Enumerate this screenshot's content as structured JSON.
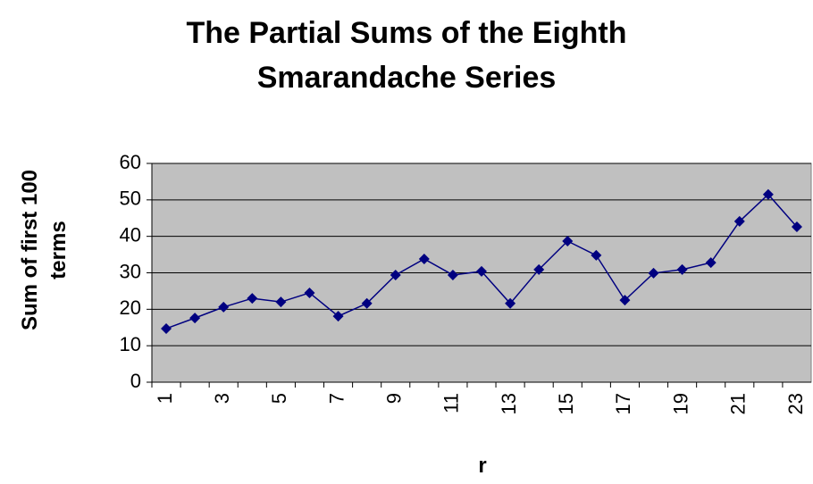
{
  "chart_data": {
    "type": "line",
    "title": "The Partial Sums of the Eighth Smarandache Series",
    "xlabel": "r",
    "ylabel": "Sum of first 100 terms",
    "categories": [
      "1",
      null,
      "3",
      null,
      "5",
      null,
      "7",
      null,
      "9",
      null,
      "11",
      null,
      "13",
      null,
      "15",
      null,
      "17",
      null,
      "19",
      null,
      "21",
      null,
      "23"
    ],
    "series": [
      {
        "name": "Sum of first 100 terms",
        "color": "#000080",
        "values": [
          14.7,
          17.6,
          20.6,
          23,
          22,
          24.5,
          18.1,
          21.6,
          29.4,
          33.8,
          29.4,
          30.4,
          21.6,
          30.9,
          38.7,
          34.8,
          22.5,
          29.9,
          30.9,
          32.8,
          44.1,
          51.5,
          42.6
        ]
      }
    ],
    "ylim": [
      0,
      60
    ],
    "yticks": [
      0,
      10,
      20,
      30,
      40,
      50,
      60
    ],
    "grid": true,
    "background": "#c0c0c0"
  }
}
